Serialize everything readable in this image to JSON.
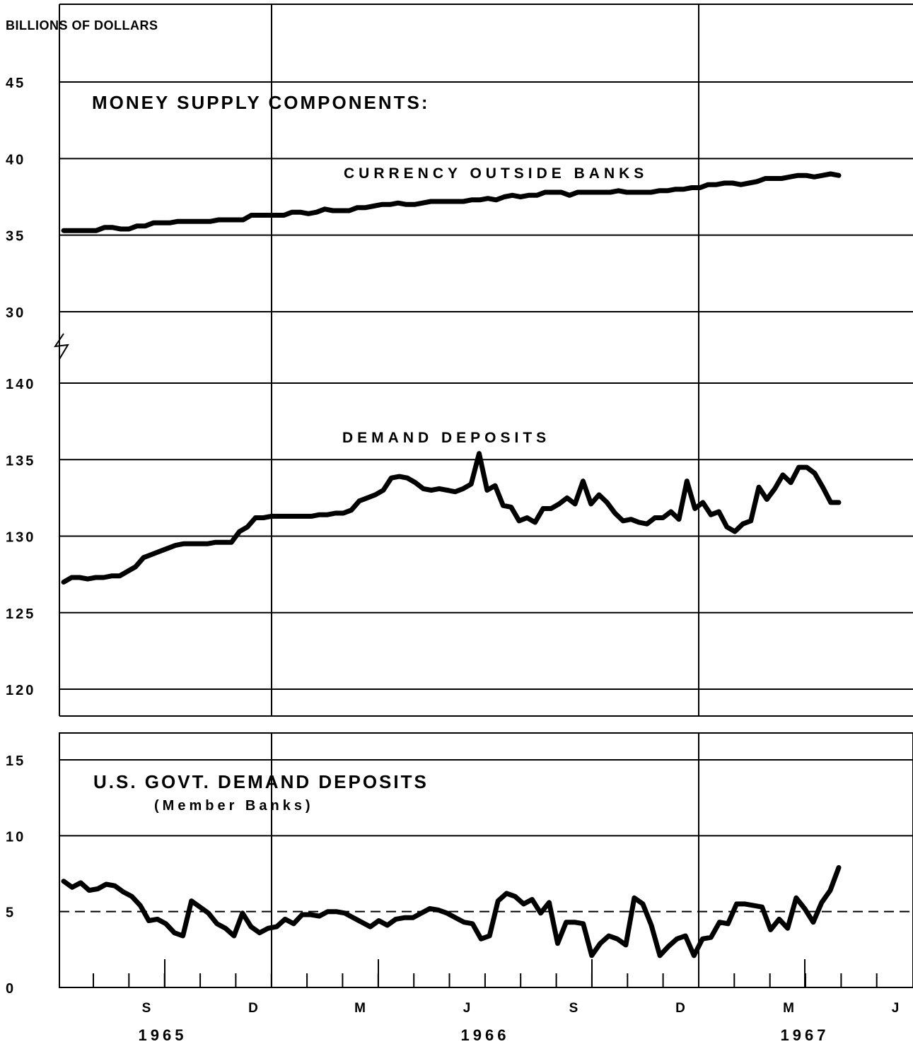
{
  "unit_label": "BILLIONS OF DOLLARS",
  "main_title": "MONEY SUPPLY COMPONENTS:",
  "months": [
    "S",
    "D",
    "M",
    "J",
    "S",
    "D",
    "M",
    "J"
  ],
  "years": [
    "1965",
    "1966",
    "1967"
  ],
  "chart_data": [
    {
      "type": "line",
      "title": "CURRENCY OUTSIDE BANKS",
      "ylim": [
        28,
        47
      ],
      "y_ticks": [
        "30",
        "35",
        "40",
        "45"
      ],
      "series": [
        {
          "name": "CURRENCY OUTSIDE BANKS",
          "values": [
            35.3,
            35.3,
            35.3,
            35.3,
            35.3,
            35.5,
            35.5,
            35.4,
            35.4,
            35.6,
            35.6,
            35.8,
            35.8,
            35.8,
            35.9,
            35.9,
            35.9,
            35.9,
            35.9,
            36.0,
            36.0,
            36.0,
            36.0,
            36.3,
            36.3,
            36.3,
            36.3,
            36.3,
            36.5,
            36.5,
            36.4,
            36.5,
            36.7,
            36.6,
            36.6,
            36.6,
            36.8,
            36.8,
            36.9,
            37.0,
            37.0,
            37.1,
            37.0,
            37.0,
            37.1,
            37.2,
            37.2,
            37.2,
            37.2,
            37.2,
            37.3,
            37.3,
            37.4,
            37.3,
            37.5,
            37.6,
            37.5,
            37.6,
            37.6,
            37.8,
            37.8,
            37.8,
            37.6,
            37.8,
            37.8,
            37.8,
            37.8,
            37.8,
            37.9,
            37.8,
            37.8,
            37.8,
            37.8,
            37.9,
            37.9,
            38.0,
            38.0,
            38.1,
            38.1,
            38.3,
            38.3,
            38.4,
            38.4,
            38.3,
            38.4,
            38.5,
            38.7,
            38.7,
            38.7,
            38.8,
            38.9,
            38.9,
            38.8,
            38.9,
            39.0,
            38.9
          ]
        }
      ]
    },
    {
      "type": "line",
      "title": "DEMAND DEPOSITS",
      "ylim": [
        118.3,
        141.2
      ],
      "y_ticks": [
        "120",
        "125",
        "130",
        "135",
        "140"
      ],
      "series": [
        {
          "name": "DEMAND DEPOSITS",
          "values": [
            127.0,
            127.3,
            127.3,
            127.2,
            127.3,
            127.3,
            127.4,
            127.4,
            127.7,
            128.0,
            128.6,
            128.8,
            129.0,
            129.2,
            129.4,
            129.5,
            129.5,
            129.5,
            129.5,
            129.6,
            129.6,
            129.6,
            130.3,
            130.6,
            131.2,
            131.2,
            131.3,
            131.3,
            131.3,
            131.3,
            131.3,
            131.3,
            131.4,
            131.4,
            131.5,
            131.5,
            131.7,
            132.3,
            132.5,
            132.7,
            133.0,
            133.8,
            133.9,
            133.8,
            133.5,
            133.1,
            133.0,
            133.1,
            133.0,
            132.9,
            133.1,
            133.4,
            135.4,
            133.0,
            133.3,
            132.0,
            131.9,
            131.0,
            131.2,
            130.9,
            131.8,
            131.8,
            132.1,
            132.5,
            132.1,
            133.6,
            132.1,
            132.7,
            132.2,
            131.5,
            131.0,
            131.1,
            130.9,
            130.8,
            131.2,
            131.2,
            131.6,
            131.1,
            133.6,
            131.8,
            132.2,
            131.4,
            131.6,
            130.6,
            130.3,
            130.8,
            131.0,
            133.2,
            132.4,
            133.1,
            134.0,
            133.5,
            134.5,
            134.5,
            134.1,
            133.2,
            132.2,
            132.2
          ]
        }
      ]
    },
    {
      "type": "line",
      "title": "U.S. GOVT. DEMAND DEPOSITS",
      "subtitle": "(Member Banks)",
      "ylim": [
        0,
        17
      ],
      "y_ticks": [
        "0",
        "5",
        "10",
        "15"
      ],
      "series": [
        {
          "name": "U.S. GOVT. DEMAND DEPOSITS",
          "values": [
            7.0,
            6.6,
            6.9,
            6.4,
            6.5,
            6.8,
            6.7,
            6.3,
            6.0,
            5.4,
            4.4,
            4.5,
            4.2,
            3.6,
            3.4,
            5.7,
            5.3,
            4.9,
            4.2,
            3.9,
            3.4,
            4.9,
            4.0,
            3.6,
            3.9,
            4.0,
            4.5,
            4.2,
            4.8,
            4.8,
            4.7,
            5.0,
            5.0,
            4.9,
            4.6,
            4.3,
            4.0,
            4.4,
            4.1,
            4.5,
            4.6,
            4.6,
            4.9,
            5.2,
            5.1,
            4.9,
            4.6,
            4.3,
            4.2,
            3.2,
            3.4,
            5.7,
            6.2,
            6.0,
            5.5,
            5.8,
            4.9,
            5.6,
            2.9,
            4.3,
            4.3,
            4.2,
            2.1,
            2.9,
            3.4,
            3.2,
            2.8,
            5.9,
            5.5,
            4.1,
            2.1,
            2.7,
            3.2,
            3.4,
            2.1,
            3.2,
            3.3,
            4.3,
            4.2,
            5.5,
            5.5,
            5.4,
            5.3,
            3.8,
            4.5,
            3.9,
            5.9,
            5.2,
            4.3,
            5.6,
            6.4,
            7.9
          ]
        }
      ]
    }
  ]
}
